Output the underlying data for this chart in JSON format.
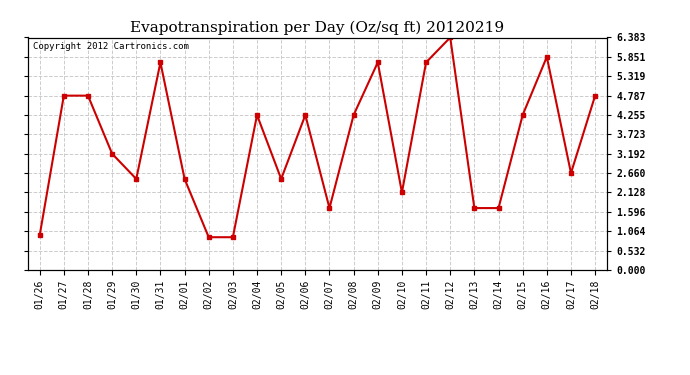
{
  "title": "Evapotranspiration per Day (Oz/sq ft) 20120219",
  "copyright_text": "Copyright 2012 Cartronics.com",
  "x_labels": [
    "01/26",
    "01/27",
    "01/28",
    "01/29",
    "01/30",
    "01/31",
    "02/01",
    "02/02",
    "02/03",
    "02/04",
    "02/05",
    "02/06",
    "02/07",
    "02/08",
    "02/09",
    "02/10",
    "02/11",
    "02/12",
    "02/13",
    "02/14",
    "02/15",
    "02/16",
    "02/17",
    "02/18"
  ],
  "y_values": [
    0.95,
    4.787,
    4.787,
    3.192,
    2.5,
    5.7,
    2.5,
    0.9,
    0.9,
    4.255,
    2.5,
    4.255,
    1.7,
    4.255,
    5.7,
    2.128,
    5.7,
    6.383,
    1.7,
    1.7,
    4.255,
    5.851,
    2.66,
    4.787
  ],
  "ylim": [
    0.0,
    6.383
  ],
  "yticks": [
    0.0,
    0.532,
    1.064,
    1.596,
    2.128,
    2.66,
    3.192,
    3.723,
    4.255,
    4.787,
    5.319,
    5.851,
    6.383
  ],
  "line_color": "#cc0000",
  "marker": "s",
  "marker_size": 3,
  "line_width": 1.5,
  "bg_color": "#ffffff",
  "plot_bg_color": "#ffffff",
  "grid_color": "#cccccc",
  "grid_style": "--",
  "title_fontsize": 11,
  "tick_fontsize": 7,
  "copyright_fontsize": 6.5
}
